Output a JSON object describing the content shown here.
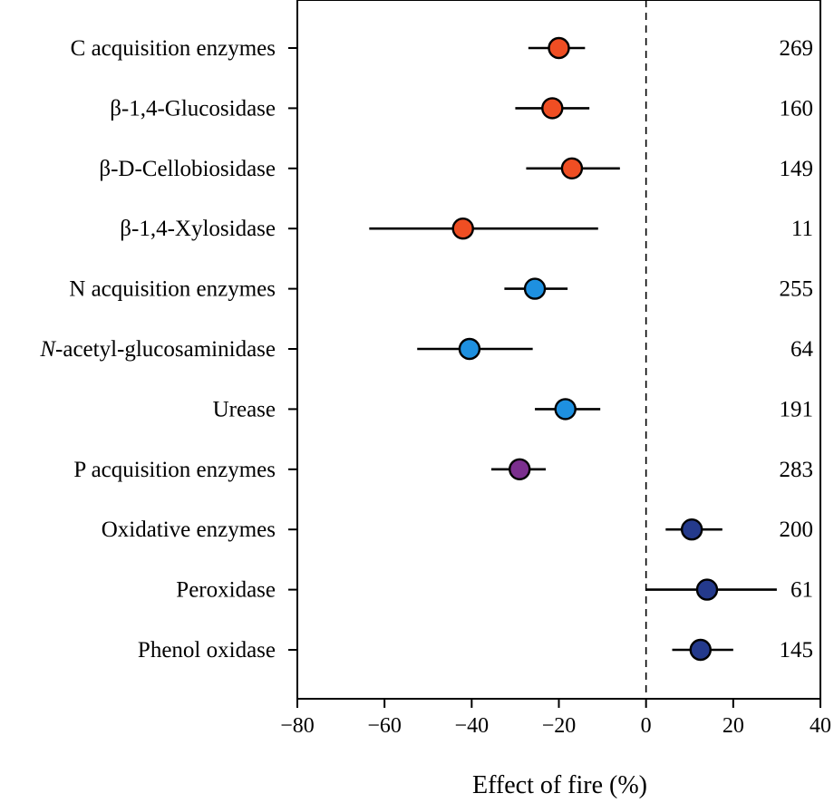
{
  "chart_data": {
    "type": "forest",
    "title": "",
    "xlabel": "Effect of fire (%)",
    "ylabel": "",
    "xlim": [
      -80,
      40
    ],
    "xticks": [
      -80,
      -60,
      -40,
      -20,
      0,
      20,
      40
    ],
    "xtick_labels": [
      "−80",
      "−60",
      "−40",
      "−20",
      "0",
      "20",
      "40"
    ],
    "reference_line": 0,
    "series": [
      {
        "label": "C acquisition enzymes",
        "italic_prefix": "",
        "label_rest": "",
        "mean": -20,
        "ci_low": -27,
        "ci_high": -14,
        "n": "269",
        "color": "#ef4e23"
      },
      {
        "label": "β-1,4-Glucosidase",
        "italic_prefix": "",
        "label_rest": "",
        "mean": -21.5,
        "ci_low": -30,
        "ci_high": -13,
        "n": "160",
        "color": "#ef4e23"
      },
      {
        "label": "β-D-Cellobiosidase",
        "italic_prefix": "",
        "label_rest": "",
        "mean": -17,
        "ci_low": -27.5,
        "ci_high": -6,
        "n": "149",
        "color": "#ef4e23"
      },
      {
        "label": "β-1,4-Xylosidase",
        "italic_prefix": "",
        "label_rest": "",
        "mean": -42,
        "ci_low": -63.5,
        "ci_high": -11,
        "n": "11",
        "color": "#ef4e23"
      },
      {
        "label": "N acquisition enzymes",
        "italic_prefix": "",
        "label_rest": "",
        "mean": -25.5,
        "ci_low": -32.5,
        "ci_high": -18,
        "n": "255",
        "color": "#1e90e0"
      },
      {
        "label": "",
        "italic_prefix": "N",
        "label_rest": "-acetyl-glucosaminidase",
        "mean": -40.5,
        "ci_low": -52.5,
        "ci_high": -26,
        "n": "64",
        "color": "#1e90e0"
      },
      {
        "label": "Urease",
        "italic_prefix": "",
        "label_rest": "",
        "mean": -18.5,
        "ci_low": -25.5,
        "ci_high": -10.5,
        "n": "191",
        "color": "#1e90e0"
      },
      {
        "label": "P acquisition enzymes",
        "italic_prefix": "",
        "label_rest": "",
        "mean": -29,
        "ci_low": -35.5,
        "ci_high": -23,
        "n": "283",
        "color": "#7b2f8e"
      },
      {
        "label": "Oxidative enzymes",
        "italic_prefix": "",
        "label_rest": "",
        "mean": 10.5,
        "ci_low": 4.5,
        "ci_high": 17.5,
        "n": "200",
        "color": "#243a8c"
      },
      {
        "label": "Peroxidase",
        "italic_prefix": "",
        "label_rest": "",
        "mean": 14,
        "ci_low": 0,
        "ci_high": 30,
        "n": "61",
        "color": "#243a8c"
      },
      {
        "label": "Phenol oxidase",
        "italic_prefix": "",
        "label_rest": "",
        "mean": 12.5,
        "ci_low": 6,
        "ci_high": 20,
        "n": "145",
        "color": "#243a8c"
      }
    ]
  }
}
